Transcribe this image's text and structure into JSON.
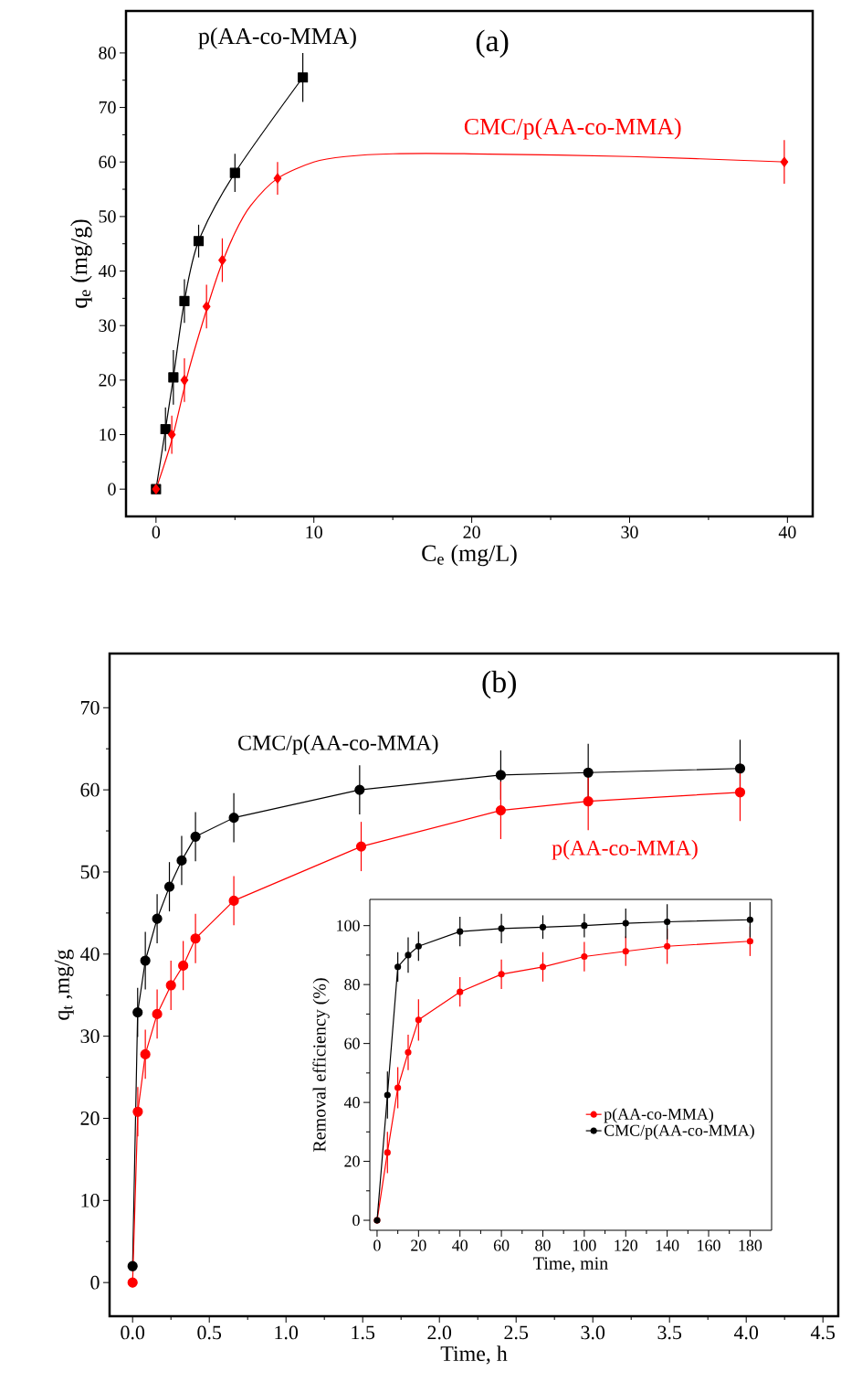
{
  "chart_data": [
    {
      "type": "line",
      "xlabel": "C$_{e}$ (mg/L)",
      "ylabel": "q$_{e}$ (mg/g)",
      "annotations": [
        "(a)"
      ],
      "xlim": [
        -1.9,
        41.6
      ],
      "ylim": [
        -5,
        87.7
      ],
      "xticks": [
        0,
        10,
        20,
        30,
        40
      ],
      "yticks": [
        0,
        10,
        20,
        30,
        40,
        50,
        60,
        70,
        80
      ],
      "legend": false,
      "line_style": "solid",
      "series": [
        {
          "name": "p(AA-co-MMA)",
          "type": "line",
          "color": "#000000",
          "marker": "square",
          "x": [
            0,
            0.6,
            1.1,
            1.8,
            2.7,
            5,
            9.3
          ],
          "values": [
            0,
            11,
            20.5,
            34.5,
            45.5,
            58,
            75.5
          ],
          "errors": [
            null,
            4,
            5,
            4,
            3,
            3.5,
            4.5
          ]
        },
        {
          "name": "CMC/p(AA-co-MMA)",
          "type": "scatter",
          "color": "#ff0000",
          "marker": "diamond",
          "x": [
            0,
            1,
            1.8,
            3.2,
            4.2,
            7.7,
            39.8
          ],
          "values": [
            0,
            10,
            20,
            33.5,
            42,
            57,
            60
          ],
          "errors": [
            null,
            3.5,
            4,
            4,
            4,
            3,
            4
          ]
        },
        {
          "type": "line",
          "color": "#ff0000",
          "marker": "none",
          "x": [
            0,
            1,
            2,
            3,
            4,
            5,
            6,
            7.7,
            10,
            12,
            15,
            20,
            30,
            40
          ],
          "values": [
            0,
            9,
            21,
            31,
            40,
            47,
            52,
            57,
            60,
            61,
            61.5,
            61.5,
            61,
            60
          ]
        }
      ]
    },
    {
      "type": "line",
      "xlabel": "Time, h",
      "ylabel": "q$_{t}$ ,mg/g",
      "annotations": [
        "(b)"
      ],
      "xlim": [
        -0.15,
        4.6
      ],
      "ylim": [
        -4.1,
        76.6
      ],
      "xticks": [
        {
          "value": 0,
          "label": "0.0"
        },
        {
          "value": 0.5,
          "label": "0.5"
        },
        {
          "value": 1,
          "label": "1.0"
        },
        {
          "value": 1.5,
          "label": "1.5"
        },
        {
          "value": 2,
          "label": "2.0"
        },
        {
          "value": 2.5,
          "label": "2.5"
        },
        {
          "value": 3,
          "label": "3.0"
        },
        {
          "value": 3.5,
          "label": "3.5"
        },
        {
          "value": 4,
          "label": "4.0"
        },
        {
          "value": 4.5,
          "label": "4.5"
        }
      ],
      "yticks": [
        0,
        10,
        20,
        30,
        40,
        50,
        60,
        70
      ],
      "legend": false,
      "line_style": "solid",
      "series": [
        {
          "name": "CMC/p(AA-co-MMA)",
          "color": "#000000",
          "marker": "circle",
          "x": [
            0,
            0.033,
            0.083,
            0.16,
            0.24,
            0.32,
            0.41,
            0.66,
            1.48,
            2.4,
            2.97,
            3.96
          ],
          "values": [
            2,
            32.9,
            39.2,
            44.3,
            48.2,
            51.4,
            54.3,
            56.6,
            60,
            61.8,
            62.1,
            62.6
          ],
          "errors": [
            null,
            3,
            3.5,
            3,
            3,
            3,
            3,
            3,
            3,
            3,
            3.5,
            3.5
          ]
        },
        {
          "name": "p(AA-co-MMA)",
          "color": "#ff0000",
          "marker": "circle",
          "x": [
            0,
            0.034,
            0.083,
            0.16,
            0.25,
            0.33,
            0.41,
            0.66,
            1.49,
            2.4,
            2.97,
            3.96
          ],
          "values": [
            0,
            20.8,
            27.8,
            32.7,
            36.2,
            38.6,
            41.9,
            46.5,
            53.1,
            57.5,
            58.6,
            59.7
          ],
          "errors": [
            null,
            3,
            3,
            3,
            3,
            3,
            3,
            3,
            3,
            3.5,
            3.5,
            3.5
          ]
        }
      ]
    },
    {
      "type": "line",
      "xlabel": "Time, min",
      "ylabel": "Removal efficiency (%)",
      "xlim": [
        -3.5,
        190.4
      ],
      "ylim": [
        -3.4,
        108.9
      ],
      "xticks": [
        0,
        20,
        40,
        60,
        80,
        100,
        120,
        140,
        160,
        180
      ],
      "yticks": [
        0,
        20,
        40,
        60,
        80,
        100
      ],
      "legend": "bottom right",
      "line_style": "solid",
      "marker": "circle",
      "series": [
        {
          "name": "p(AA-co-MMA)",
          "color": "#ff0000",
          "x": [
            0,
            5,
            10,
            15,
            20,
            40,
            60,
            80,
            100,
            120,
            140,
            180
          ],
          "values": [
            0,
            23,
            45,
            57,
            68,
            77.5,
            83.5,
            86,
            89.5,
            91.3,
            93,
            94.7
          ],
          "errors": [
            null,
            7,
            7,
            6,
            7,
            5,
            5,
            5,
            5,
            5,
            6,
            5
          ]
        },
        {
          "name": "CMC/p(AA-co-MMA)",
          "color": "#000000",
          "x": [
            0,
            5,
            10,
            15,
            20,
            40,
            60,
            80,
            100,
            120,
            140,
            180
          ],
          "values": [
            0,
            42.5,
            86,
            90,
            93,
            98,
            99,
            99.5,
            100,
            100.8,
            101.3,
            102
          ],
          "errors": [
            null,
            8,
            5,
            6,
            5,
            5,
            5,
            4,
            4,
            5,
            6,
            6
          ]
        }
      ]
    }
  ]
}
